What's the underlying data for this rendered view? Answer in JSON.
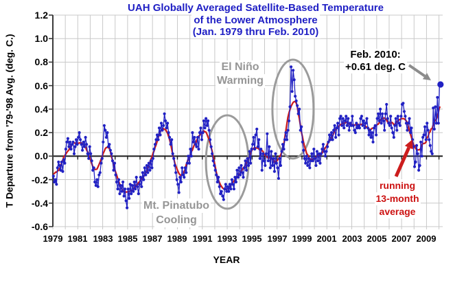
{
  "title": {
    "line1": "UAH Globally Averaged Satellite-Based Temperature",
    "line2": "of the Lower Atmosphere",
    "line3": "(Jan. 1979  thru Feb. 2010)",
    "color": "#1e1ec4"
  },
  "axes": {
    "y_label": "T Departure from '79-'98 Avg. (deg. C.)",
    "x_label": "YEAR",
    "y_ticks": [
      "1.2",
      "1.0",
      "0.8",
      "0.6",
      "0.4",
      "0.2",
      "0.0",
      "-0.2",
      "-0.4",
      "-0.6"
    ],
    "x_ticks": [
      "1979",
      "1981",
      "1983",
      "1985",
      "1987",
      "1989",
      "1991",
      "1993",
      "1995",
      "1997",
      "1999",
      "2001",
      "2003",
      "2005",
      "2007",
      "2009"
    ]
  },
  "annotations": {
    "el_nino": {
      "line1": "El Niño",
      "line2": "Warming",
      "color": "#969696"
    },
    "pinatubo": {
      "line1": "Mt. Pinatubo",
      "line2": "Cooling",
      "color": "#969696"
    },
    "feb2010": {
      "line1": "Feb. 2010:",
      "line2": "+0.61 deg. C",
      "color": "#000000"
    },
    "running": {
      "line1": "running",
      "line2": "13-month",
      "line3": "average",
      "color": "#cc1111"
    }
  },
  "colors": {
    "series_blue": "#2121c3",
    "running_red": "#cc1d1d",
    "annotation_gray": "#969696",
    "ellipse_gray": "#9b9b9b",
    "arrow_gray": "#8c8c8c",
    "grid": "#c8c8c8",
    "zero_line": "#1a1a1a",
    "axis_line": "#3a3a3a"
  },
  "chart_data": {
    "type": "line",
    "title": "UAH Globally Averaged Satellite-Based Temperature of the Lower Atmosphere (Jan. 1979 thru Feb. 2010)",
    "xlabel": "YEAR",
    "ylabel": "T Departure from '79-'98 Avg. (deg. C.)",
    "xlim": [
      1979,
      2010.3
    ],
    "ylim": [
      -0.6,
      1.2
    ],
    "x_gridline_step_years": 1,
    "y_gridline_step": 0.2,
    "grid": true,
    "legend": "none",
    "last_point": {
      "label": "Feb. 2010",
      "value": 0.61
    },
    "series": [
      {
        "name": "monthly temperature anomaly (deg. C)",
        "style": "blue dots with connecting line",
        "start_year": 1979,
        "start_month": 1,
        "monthly": [
          {
            "year": 1979,
            "values": [
              -0.17,
              -0.22,
              -0.2,
              -0.24,
              -0.1,
              -0.05,
              -0.08,
              -0.12,
              -0.05,
              -0.13,
              -0.03,
              -0.06
            ]
          },
          {
            "year": 1980,
            "values": [
              0.06,
              0.12,
              0.15,
              0.08,
              0.12,
              0.06,
              0.1,
              0.12,
              0.02,
              0.08,
              0.14,
              0.1
            ]
          },
          {
            "year": 1981,
            "values": [
              0.16,
              0.2,
              0.14,
              0.1,
              0.05,
              0.12,
              0.08,
              0.16,
              0.1,
              0.02,
              -0.02,
              0.08
            ]
          },
          {
            "year": 1982,
            "values": [
              0.02,
              -0.04,
              -0.12,
              -0.1,
              -0.22,
              -0.25,
              -0.2,
              -0.26,
              -0.16,
              -0.14,
              -0.06,
              -0.02
            ]
          },
          {
            "year": 1983,
            "values": [
              0.12,
              0.26,
              0.22,
              0.16,
              0.2,
              0.08,
              0.1,
              0.05,
              0.02,
              -0.04,
              -0.12,
              -0.06
            ]
          },
          {
            "year": 1984,
            "values": [
              -0.16,
              -0.22,
              -0.28,
              -0.2,
              -0.32,
              -0.25,
              -0.3,
              -0.22,
              -0.34,
              -0.28,
              -0.38,
              -0.44
            ]
          },
          {
            "year": 1985,
            "values": [
              -0.28,
              -0.36,
              -0.24,
              -0.32,
              -0.25,
              -0.3,
              -0.22,
              -0.28,
              -0.18,
              -0.26,
              -0.32,
              -0.24
            ]
          },
          {
            "year": 1986,
            "values": [
              -0.18,
              -0.26,
              -0.14,
              -0.2,
              -0.1,
              -0.16,
              -0.08,
              -0.14,
              -0.06,
              -0.12,
              -0.04,
              -0.1
            ]
          },
          {
            "year": 1987,
            "values": [
              -0.02,
              0.06,
              0.1,
              0.14,
              0.18,
              0.14,
              0.24,
              0.18,
              0.28,
              0.22,
              0.26,
              0.36
            ]
          },
          {
            "year": 1988,
            "values": [
              0.3,
              0.24,
              0.28,
              0.2,
              0.16,
              0.1,
              0.14,
              0.02,
              -0.02,
              -0.08,
              -0.14,
              -0.2
            ]
          },
          {
            "year": 1989,
            "values": [
              -0.24,
              -0.31,
              -0.18,
              -0.22,
              -0.1,
              -0.16,
              -0.18,
              -0.1,
              -0.14,
              -0.06,
              0.0,
              -0.06
            ]
          },
          {
            "year": 1990,
            "values": [
              0.06,
              0.0,
              0.2,
              0.12,
              0.16,
              0.1,
              0.08,
              0.16,
              0.06,
              0.2,
              0.24,
              0.14
            ]
          },
          {
            "year": 1991,
            "values": [
              0.2,
              0.3,
              0.24,
              0.32,
              0.26,
              0.3,
              0.22,
              0.14,
              0.08,
              0.02,
              -0.04,
              -0.08
            ]
          },
          {
            "year": 1992,
            "values": [
              -0.12,
              -0.16,
              -0.22,
              -0.18,
              -0.26,
              -0.32,
              -0.3,
              -0.34,
              -0.37,
              -0.28,
              -0.24,
              -0.3
            ]
          },
          {
            "year": 1993,
            "values": [
              -0.26,
              -0.3,
              -0.24,
              -0.28,
              -0.2,
              -0.24,
              -0.28,
              -0.18,
              -0.22,
              -0.12,
              -0.18,
              -0.1
            ]
          },
          {
            "year": 1994,
            "values": [
              -0.16,
              -0.08,
              -0.14,
              -0.18,
              -0.1,
              -0.04,
              -0.12,
              -0.02,
              -0.08,
              0.04,
              -0.06,
              0.06
            ]
          },
          {
            "year": 1995,
            "values": [
              0.1,
              0.16,
              0.06,
              0.18,
              0.23,
              0.08,
              0.14,
              -0.02,
              0.06,
              -0.12,
              0.02,
              -0.04
            ]
          },
          {
            "year": 1996,
            "values": [
              -0.08,
              0.02,
              0.19,
              -0.04,
              0.08,
              -0.1,
              0.04,
              -0.08,
              -0.02,
              -0.13,
              0.02,
              -0.06
            ]
          },
          {
            "year": 1997,
            "values": [
              -0.1,
              -0.19,
              -0.02,
              -0.08,
              0.04,
              0.1,
              0.06,
              0.14,
              0.2,
              0.14,
              0.22,
              0.3
            ]
          },
          {
            "year": 1998,
            "values": [
              0.42,
              0.76,
              0.55,
              0.73,
              0.65,
              0.51,
              0.47,
              0.43,
              0.36,
              0.4,
              0.22,
              0.25
            ]
          },
          {
            "year": 1999,
            "values": [
              0.12,
              0.05,
              -0.02,
              -0.06,
              0.0,
              -0.08,
              -0.02,
              -0.1,
              -0.04,
              0.02,
              -0.04,
              0.06
            ]
          },
          {
            "year": 2000,
            "values": [
              -0.02,
              -0.08,
              0.04,
              -0.04,
              0.02,
              -0.06,
              0.02,
              0.06,
              0.1,
              0.04,
              0.0,
              0.04
            ]
          },
          {
            "year": 2001,
            "values": [
              0.08,
              0.12,
              0.18,
              0.14,
              0.2,
              0.14,
              0.22,
              0.26,
              0.16,
              0.24,
              0.28,
              0.18
            ]
          },
          {
            "year": 2002,
            "values": [
              0.32,
              0.34,
              0.26,
              0.32,
              0.24,
              0.3,
              0.34,
              0.26,
              0.32,
              0.22,
              0.28,
              0.26
            ]
          },
          {
            "year": 2003,
            "values": [
              0.34,
              0.26,
              0.22,
              0.2,
              0.28,
              0.24,
              0.26,
              0.24,
              0.32,
              0.34,
              0.26,
              0.3
            ]
          },
          {
            "year": 2004,
            "values": [
              0.24,
              0.28,
              0.32,
              0.24,
              0.18,
              0.22,
              0.16,
              0.2,
              0.12,
              0.24,
              0.26,
              0.18
            ]
          },
          {
            "year": 2005,
            "values": [
              0.32,
              0.36,
              0.3,
              0.4,
              0.28,
              0.36,
              0.3,
              0.22,
              0.36,
              0.44,
              0.32,
              0.28
            ]
          },
          {
            "year": 2006,
            "values": [
              0.26,
              0.34,
              0.24,
              0.2,
              0.16,
              0.26,
              0.32,
              0.22,
              0.34,
              0.28,
              0.26,
              0.34
            ]
          },
          {
            "year": 2007,
            "values": [
              0.44,
              0.45,
              0.38,
              0.34,
              0.28,
              0.22,
              0.28,
              0.32,
              0.2,
              0.24,
              0.14,
              0.08
            ]
          },
          {
            "year": 2008,
            "values": [
              -0.09,
              -0.05,
              0.09,
              0.02,
              -0.12,
              -0.08,
              0.12,
              0.0,
              0.16,
              0.18,
              0.25,
              0.14
            ]
          },
          {
            "year": 2009,
            "values": [
              0.28,
              0.22,
              0.14,
              0.09,
              0.04,
              0.02,
              0.41,
              0.23,
              0.42,
              0.28,
              0.5,
              0.28
            ]
          },
          {
            "year": 2010,
            "values": [
              0.6,
              0.61
            ]
          }
        ]
      },
      {
        "name": "running 13-month average",
        "style": "red line",
        "derived": "centered 13-month mean of the monthly series"
      }
    ]
  }
}
